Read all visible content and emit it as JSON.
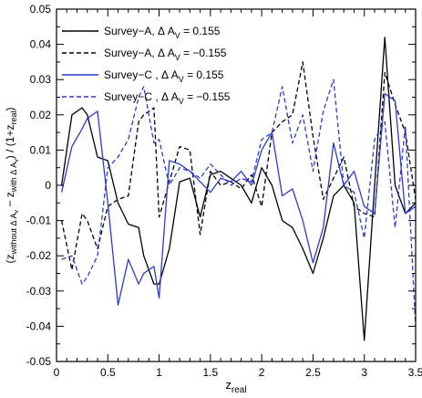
{
  "chart_data": {
    "type": "line",
    "title": "",
    "xlabel": {
      "main": "z",
      "sub": "real"
    },
    "ylabel": "(z_without ΔA_v − z_with ΔA_v) / (1+z_real)",
    "xlim": [
      0,
      3.5
    ],
    "ylim": [
      -0.05,
      0.05
    ],
    "xticks": [
      0,
      0.5,
      1,
      1.5,
      2,
      2.5,
      3,
      3.5
    ],
    "xtick_labels": [
      "0",
      "0.5",
      "1",
      "1.5",
      "2",
      "2.5",
      "3",
      "3.5"
    ],
    "yticks": [
      -0.05,
      -0.04,
      -0.03,
      -0.02,
      -0.01,
      0,
      0.01,
      0.02,
      0.03,
      0.04,
      0.05
    ],
    "ytick_labels": [
      "-0.05",
      "-0.04",
      "-0.03",
      "-0.02",
      "-0.01",
      "0",
      "0.01",
      "0.02",
      "0.03",
      "0.04",
      "0.05"
    ],
    "grid": false,
    "legend_position": "top-left",
    "series": [
      {
        "name": "Survey−A, Δ A_v = 0.155",
        "name_parts": {
          "pre": "Survey−A, Δ A",
          "sub": "V",
          "post": " = 0.155"
        },
        "color": "#000000",
        "dash": "solid",
        "x": [
          0.05,
          0.15,
          0.25,
          0.3,
          0.4,
          0.5,
          0.6,
          0.7,
          0.8,
          0.85,
          0.95,
          1.0,
          1.1,
          1.2,
          1.3,
          1.4,
          1.5,
          1.6,
          1.7,
          1.8,
          1.9,
          2.0,
          2.1,
          2.2,
          2.3,
          2.4,
          2.5,
          2.6,
          2.7,
          2.8,
          2.9,
          3.0,
          3.1,
          3.2,
          3.3,
          3.4,
          3.5
        ],
        "y": [
          0.0,
          0.02,
          0.022,
          0.02,
          0.008,
          0.007,
          -0.005,
          -0.011,
          -0.012,
          -0.02,
          -0.028,
          -0.028,
          -0.018,
          0.001,
          0.002,
          -0.009,
          0.003,
          0.004,
          0.002,
          0.0,
          -0.005,
          0.005,
          0.0,
          -0.01,
          -0.012,
          -0.018,
          -0.025,
          -0.015,
          -0.003,
          0.0,
          -0.005,
          -0.044,
          0.0,
          0.042,
          0.0,
          -0.008,
          -0.005
        ]
      },
      {
        "name": "Survey−A, Δ A_v = −0.155",
        "name_parts": {
          "pre": "Survey−A, Δ A",
          "sub": "V",
          "post": " = −0.155"
        },
        "color": "#000000",
        "dash": "dashed",
        "x": [
          0.05,
          0.15,
          0.25,
          0.3,
          0.4,
          0.5,
          0.6,
          0.7,
          0.8,
          0.85,
          0.95,
          1.0,
          1.1,
          1.2,
          1.3,
          1.4,
          1.5,
          1.6,
          1.7,
          1.8,
          1.9,
          2.0,
          2.1,
          2.2,
          2.3,
          2.4,
          2.5,
          2.6,
          2.7,
          2.8,
          2.9,
          3.0,
          3.1,
          3.2,
          3.3,
          3.4,
          3.5
        ],
        "y": [
          -0.01,
          -0.024,
          -0.008,
          -0.01,
          -0.018,
          -0.006,
          -0.004,
          -0.003,
          0.018,
          0.02,
          0.022,
          -0.009,
          0.001,
          0.011,
          0.01,
          -0.014,
          0.004,
          0.0,
          0.001,
          -0.001,
          0.003,
          -0.006,
          0.015,
          0.018,
          0.02,
          0.035,
          0.014,
          -0.004,
          0.002,
          0.008,
          -0.006,
          -0.008,
          -0.009,
          0.032,
          0.023,
          0.015,
          -0.004
        ]
      },
      {
        "name": "Survey−C , Δ A_v = 0.155",
        "name_parts": {
          "pre": "Survey−C , Δ A",
          "sub": "V",
          "post": " = 0.155"
        },
        "color": "#2b3bd1",
        "dash": "solid",
        "x": [
          0.05,
          0.15,
          0.25,
          0.3,
          0.4,
          0.5,
          0.6,
          0.7,
          0.8,
          0.85,
          0.95,
          1.0,
          1.1,
          1.2,
          1.3,
          1.4,
          1.5,
          1.6,
          1.7,
          1.8,
          1.9,
          2.0,
          2.1,
          2.2,
          2.3,
          2.4,
          2.5,
          2.6,
          2.7,
          2.8,
          2.9,
          3.0,
          3.1,
          3.2,
          3.3,
          3.4,
          3.5
        ],
        "y": [
          -0.002,
          0.011,
          0.016,
          0.019,
          0.021,
          -0.005,
          -0.034,
          -0.021,
          -0.028,
          -0.025,
          -0.023,
          -0.032,
          0.007,
          0.006,
          0.004,
          0.001,
          -0.002,
          0.002,
          0.001,
          0.004,
          0.0,
          0.01,
          0.015,
          -0.003,
          -0.001,
          -0.01,
          -0.022,
          -0.012,
          0.012,
          0.0,
          0.004,
          -0.006,
          -0.008,
          0.026,
          0.024,
          -0.008,
          -0.006
        ]
      },
      {
        "name": "Survey−C , Δ A_v = −0.155",
        "name_parts": {
          "pre": "Survey−C , Δ A",
          "sub": "V",
          "post": " = −0.155"
        },
        "color": "#2b3bd1",
        "dash": "dashed",
        "x": [
          0.05,
          0.15,
          0.25,
          0.3,
          0.4,
          0.5,
          0.6,
          0.7,
          0.8,
          0.85,
          0.95,
          1.0,
          1.1,
          1.2,
          1.3,
          1.4,
          1.5,
          1.6,
          1.7,
          1.8,
          1.9,
          2.0,
          2.1,
          2.2,
          2.3,
          2.4,
          2.5,
          2.6,
          2.7,
          2.8,
          2.9,
          3.0,
          3.1,
          3.2,
          3.3,
          3.4,
          3.5
        ],
        "y": [
          -0.021,
          -0.02,
          -0.028,
          -0.026,
          -0.02,
          0.005,
          0.008,
          0.013,
          0.025,
          0.028,
          0.012,
          0.013,
          0.0,
          0.005,
          0.004,
          0.002,
          0.006,
          0.003,
          0.0,
          0.002,
          0.001,
          0.013,
          0.015,
          0.028,
          0.012,
          0.02,
          0.004,
          0.021,
          0.03,
          0.0,
          -0.002,
          -0.015,
          0.013,
          0.018,
          -0.012,
          0.017,
          -0.04
        ]
      }
    ]
  }
}
